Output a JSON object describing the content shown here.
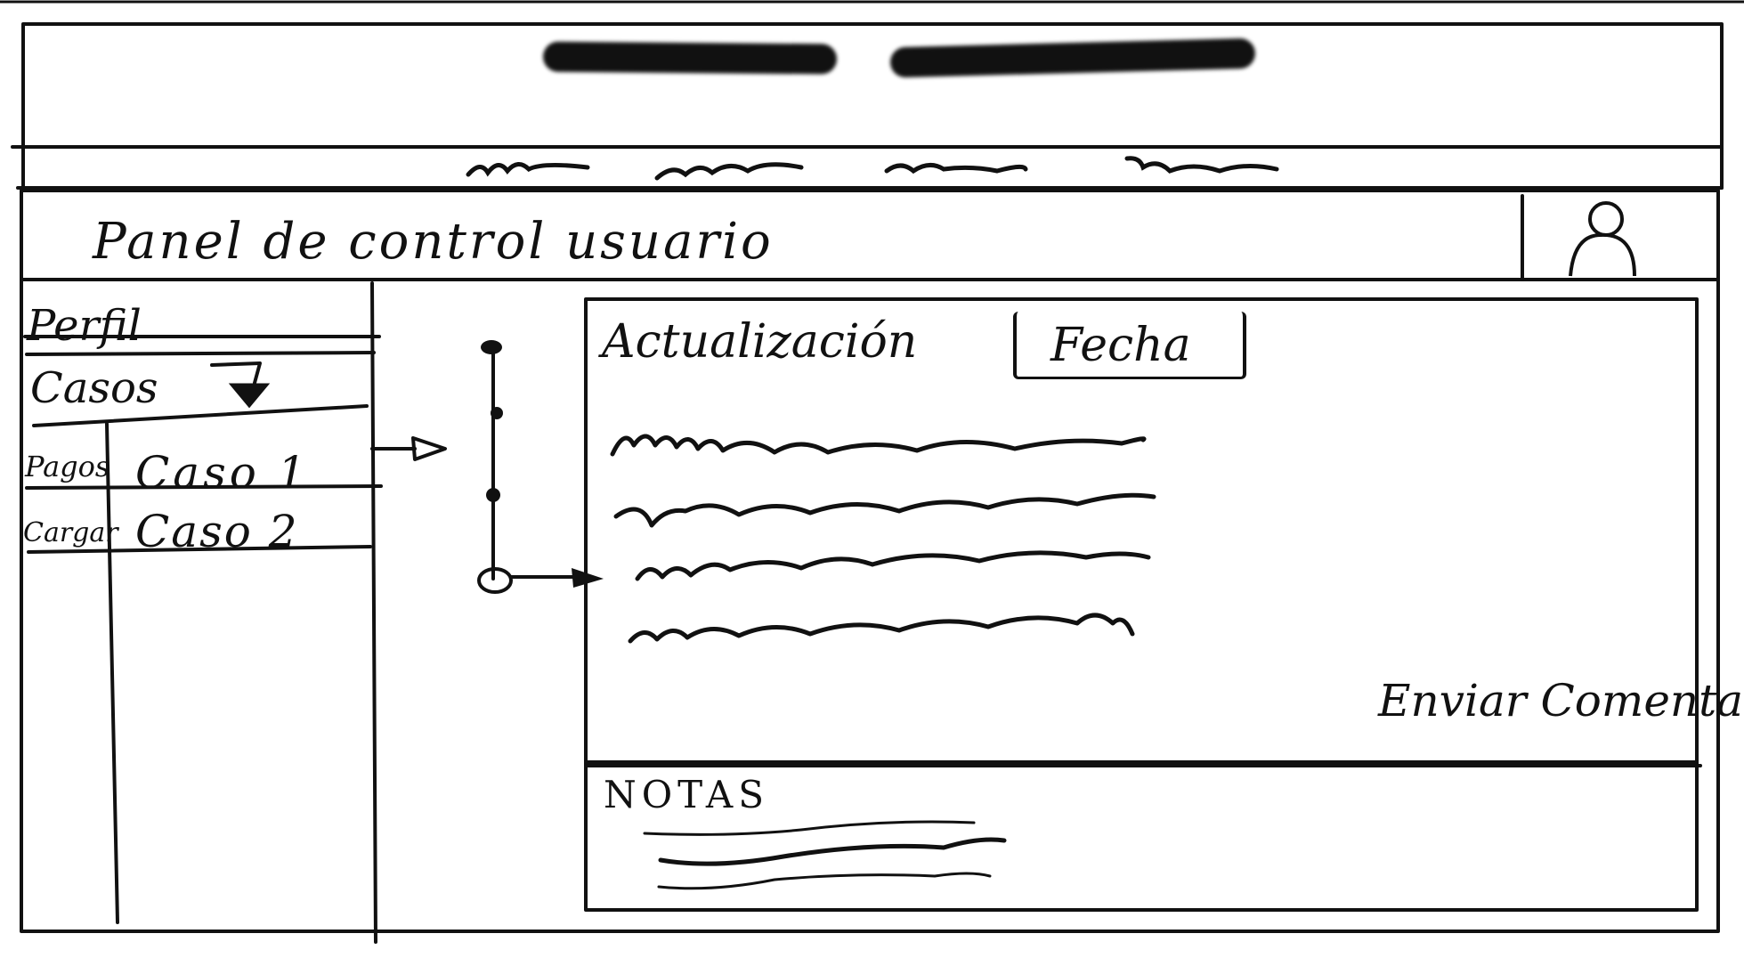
{
  "panel": {
    "title": "Panel de control usuario"
  },
  "sidebar": {
    "items": [
      {
        "label": "Perfil"
      },
      {
        "label": "Casos"
      }
    ],
    "sub_items": [
      {
        "label": "Pagos"
      },
      {
        "label": "Cargar"
      }
    ]
  },
  "cases": [
    {
      "label": "Caso 1"
    },
    {
      "label": "Caso 2"
    }
  ],
  "update_panel": {
    "title": "Actualización",
    "date_placeholder": "Fecha",
    "send_comment_label": "Enviar Comentario"
  },
  "notes": {
    "title": "NOTAS"
  },
  "icons": {
    "user": "user-avatar-icon",
    "dropdown": "dropdown-triangle-icon",
    "arrow": "arrow-right-icon"
  },
  "colors": {
    "ink": "#111111",
    "paper": "#ffffff"
  }
}
